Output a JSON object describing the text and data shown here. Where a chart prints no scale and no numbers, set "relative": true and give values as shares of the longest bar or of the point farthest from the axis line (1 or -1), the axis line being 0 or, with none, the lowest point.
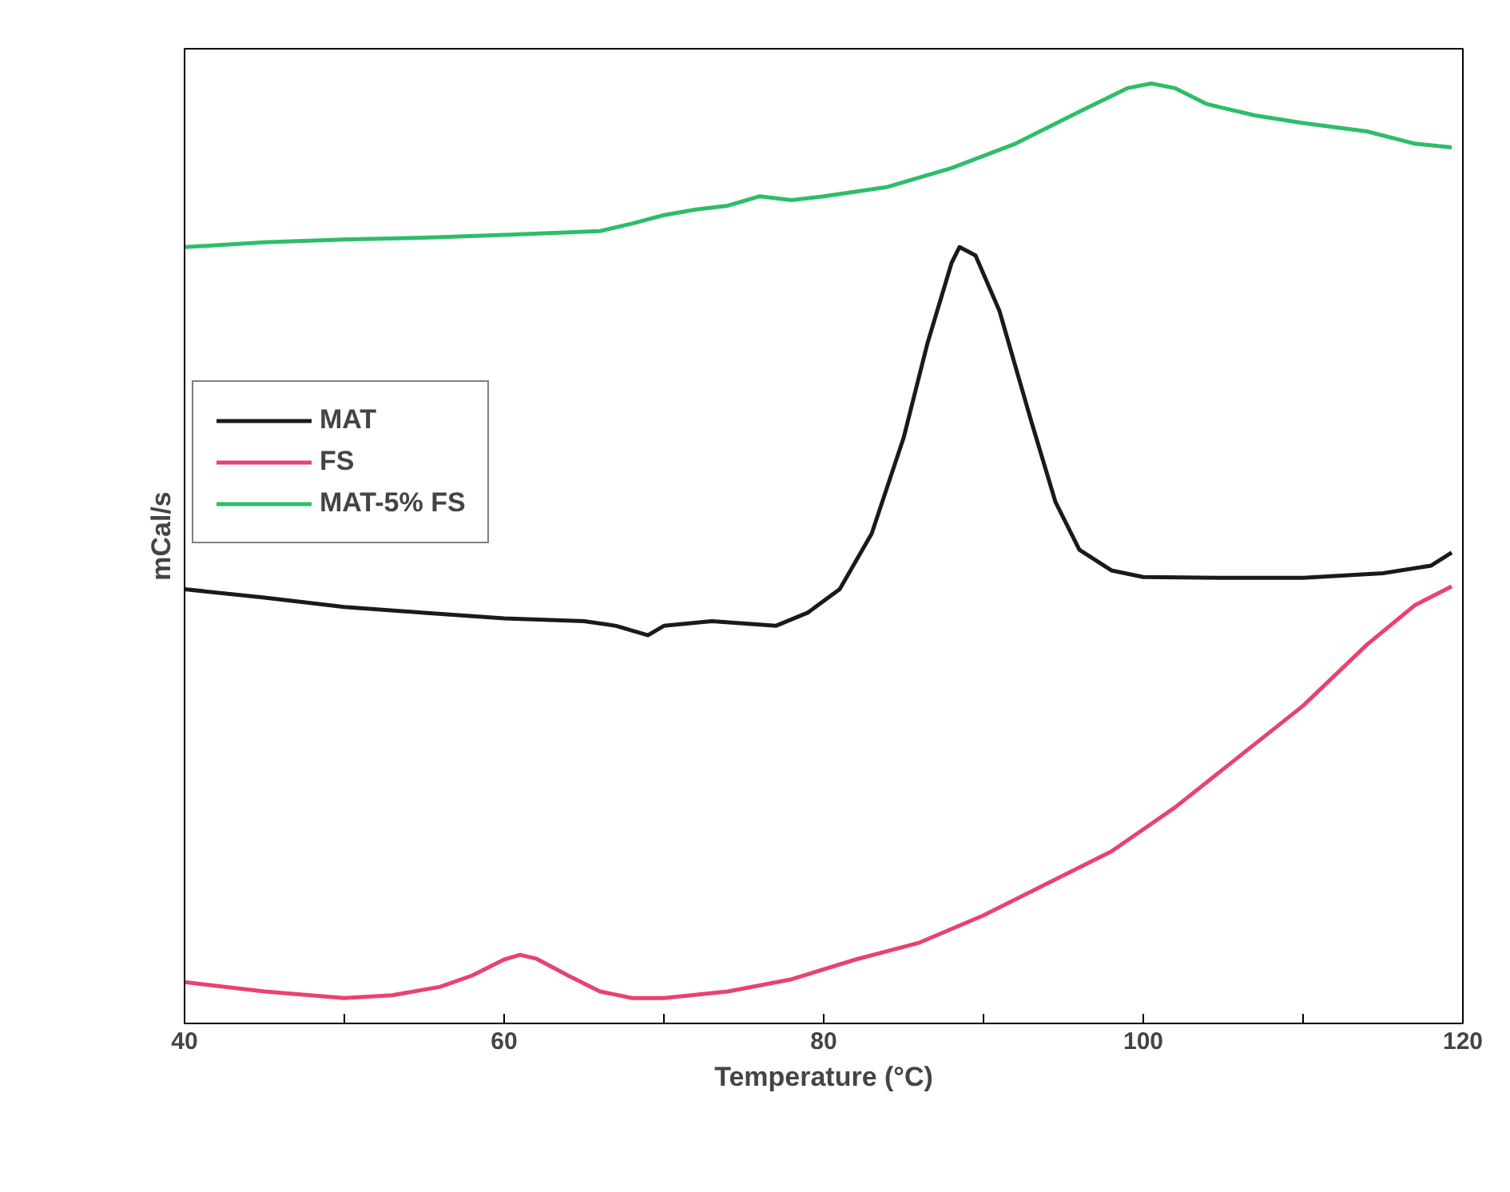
{
  "chart_data": {
    "type": "line",
    "xlabel": "Temperature (°C)",
    "ylabel": "mCal/s",
    "relative": true,
    "xlim": [
      40,
      120
    ],
    "xticks": [
      40,
      {
        "value": 50,
        "label": null
      },
      60,
      {
        "value": 70,
        "label": null
      },
      80,
      {
        "value": 90,
        "label": null
      },
      100,
      {
        "value": 110,
        "label": null
      },
      120
    ],
    "legend": "top left",
    "grid": false,
    "series": [
      {
        "name": "MAT",
        "color": "#1a1a1a",
        "x": [
          40,
          45,
          50,
          55,
          60,
          65,
          67,
          69,
          70,
          73,
          77,
          79,
          81,
          83,
          85,
          86.5,
          88,
          88.5,
          89.5,
          91,
          93,
          94.5,
          96,
          98,
          100,
          105,
          110,
          115,
          118,
          119.3
        ],
        "values": [
          0.462,
          0.453,
          0.443,
          0.437,
          0.431,
          0.428,
          0.423,
          0.413,
          0.423,
          0.428,
          0.423,
          0.437,
          0.462,
          0.521,
          0.623,
          0.724,
          0.809,
          0.826,
          0.817,
          0.758,
          0.64,
          0.555,
          0.504,
          0.482,
          0.475,
          0.474,
          0.474,
          0.479,
          0.487,
          0.501
        ]
      },
      {
        "name": "FS",
        "color": "#e8436e",
        "x": [
          40,
          45,
          50,
          53,
          56,
          58,
          60,
          61,
          62,
          64,
          66,
          68,
          70,
          74,
          78,
          82,
          86,
          90,
          94,
          98,
          102,
          106,
          110,
          114,
          117,
          119.3
        ],
        "values": [
          0.044,
          0.034,
          0.027,
          0.03,
          0.039,
          0.051,
          0.068,
          0.073,
          0.069,
          0.051,
          0.034,
          0.027,
          0.027,
          0.034,
          0.047,
          0.068,
          0.086,
          0.115,
          0.149,
          0.183,
          0.23,
          0.284,
          0.338,
          0.403,
          0.445,
          0.465
        ]
      },
      {
        "name": "MAT-5% FS",
        "color": "#2ebd6b",
        "x": [
          40,
          45,
          50,
          55,
          60,
          66,
          68,
          70,
          72,
          74,
          76,
          78,
          80,
          84,
          88,
          92,
          96,
          99,
          100.5,
          102,
          104,
          107,
          110,
          114,
          117,
          119.3
        ],
        "values": [
          0.826,
          0.831,
          0.834,
          0.836,
          0.839,
          0.843,
          0.851,
          0.86,
          0.866,
          0.87,
          0.88,
          0.876,
          0.88,
          0.89,
          0.91,
          0.936,
          0.97,
          0.995,
          1.0,
          0.995,
          0.978,
          0.966,
          0.958,
          0.949,
          0.936,
          0.932
        ]
      }
    ]
  }
}
